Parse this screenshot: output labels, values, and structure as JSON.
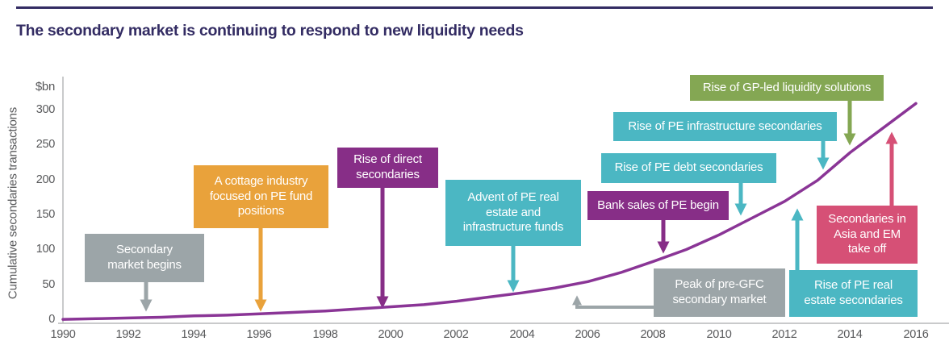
{
  "header": {
    "title": "The secondary market is continuing to respond to new liquidity needs"
  },
  "colors": {
    "title_text": "#332C63",
    "top_rule": "#332C63",
    "curve_line": "#8A3596",
    "axis_line": "#C9CACB",
    "tick_text": "#58595B",
    "box_gray": "#9CA5A8",
    "box_orange": "#E9A23B",
    "box_purple": "#872E87",
    "box_teal": "#4BB7C3",
    "box_green": "#84A753",
    "box_pink": "#D65076",
    "box_text": "#FFFFFF"
  },
  "chart_data": {
    "type": "line",
    "title": "The secondary market is continuing to respond to new liquidity needs",
    "unit": "$bn",
    "ylabel": "Cumulative secondaries transactions",
    "xlabel": "",
    "xlim": [
      1990,
      2016
    ],
    "ylim": [
      0,
      350
    ],
    "grid": false,
    "x_ticks": [
      "1990",
      "1992",
      "1994",
      "1996",
      "1998",
      "2000",
      "2002",
      "2004",
      "2006",
      "2008",
      "2010",
      "2012",
      "2014",
      "2016"
    ],
    "y_ticks": [
      "300",
      "250",
      "200",
      "150",
      "100",
      "50",
      "0"
    ],
    "x": [
      1990,
      1991,
      1992,
      1993,
      1994,
      1995,
      1996,
      1997,
      1998,
      1999,
      2000,
      2001,
      2002,
      2003,
      2004,
      2005,
      2006,
      2007,
      2008,
      2009,
      2010,
      2011,
      2012,
      2013,
      2014,
      2015,
      2016
    ],
    "series": [
      {
        "name": "Cumulative secondaries transactions ($bn)",
        "values": [
          1,
          2,
          3,
          4,
          6,
          7,
          9,
          11,
          13,
          16,
          19,
          22,
          27,
          33,
          39,
          46,
          55,
          68,
          84,
          101,
          122,
          146,
          170,
          200,
          240,
          275,
          310
        ]
      }
    ],
    "annotations": [
      {
        "label": "Secondary\nmarket begins",
        "color": "gray",
        "points_to_year": 1992.5
      },
      {
        "label": "A cottage industry\nfocused on PE fund\npositions",
        "color": "orange",
        "points_to_year": 1996
      },
      {
        "label": "Rise of direct\nsecondaries",
        "color": "purple",
        "points_to_year": 2000
      },
      {
        "label": "Advent of PE real\nestate and\ninfrastructure funds",
        "color": "teal",
        "points_to_year": 2003.7
      },
      {
        "label": "Peak of pre-GFC\nsecondary market",
        "color": "gray",
        "points_to_year": 2005.7
      },
      {
        "label": "Bank sales of PE begin",
        "color": "purple",
        "points_to_year": 2008.3
      },
      {
        "label": "Rise of PE debt secondaries",
        "color": "teal",
        "points_to_year": 2010.7
      },
      {
        "label": "Rise of PE real\nestate secondaries",
        "color": "teal",
        "points_to_year": 2012.4
      },
      {
        "label": "Rise of PE infrastructure  secondaries",
        "color": "teal",
        "points_to_year": 2013.2
      },
      {
        "label": "Rise of GP-led liquidity solutions",
        "color": "green",
        "points_to_year": 2014
      },
      {
        "label": "Secondaries in\nAsia and EM\ntake off",
        "color": "pink",
        "points_to_year": 2015.3
      }
    ]
  }
}
